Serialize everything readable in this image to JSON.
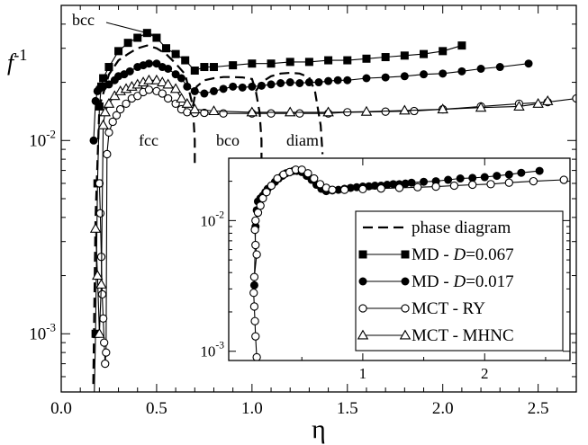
{
  "chart_data": [
    {
      "type": "line",
      "xlabel": "η",
      "ylabel": "f",
      "ylabel_sup": "-1",
      "xscale": "linear",
      "yscale": "log",
      "xlim": [
        0,
        2.7
      ],
      "ylim": [
        0.0005,
        0.05
      ],
      "x_ticks": [
        0,
        0.5,
        1,
        1.5,
        2,
        2.5
      ],
      "x_tick_labels": [
        "0.0",
        "0.5",
        "1.0",
        "1.5",
        "2.0",
        "2.5"
      ],
      "y_ticks": [
        0.001,
        0.01
      ],
      "y_tick_labels": [
        {
          "base": "10",
          "exp": "-3"
        },
        {
          "base": "10",
          "exp": "-2"
        }
      ],
      "grid": false,
      "annotations": [
        "bcc",
        "fcc",
        "bco",
        "diam"
      ],
      "series": [
        {
          "name": "phase diagram",
          "style": "dashed",
          "segments": [
            {
              "x": [
                0.168,
                0.18,
                0.2,
                0.25,
                0.3,
                0.35,
                0.4,
                0.45,
                0.5,
                0.55,
                0.6,
                0.65,
                0.69,
                0.7,
                0.7
              ],
              "y": [
                0.00055,
                0.004,
                0.015,
                0.022,
                0.026,
                0.028,
                0.03,
                0.031,
                0.03,
                0.028,
                0.025,
                0.022,
                0.015,
                0.01,
                0.0072
              ]
            },
            {
              "x": [
                0.69,
                0.71,
                0.75,
                0.8,
                0.85,
                0.9,
                0.95,
                1.0,
                1.02,
                1.04,
                1.05,
                1.05
              ],
              "y": [
                0.015,
                0.019,
                0.0205,
                0.021,
                0.0213,
                0.0213,
                0.0212,
                0.0208,
                0.018,
                0.014,
                0.01,
                0.0074
              ]
            },
            {
              "x": [
                1.02,
                1.05,
                1.1,
                1.15,
                1.2,
                1.25,
                1.3,
                1.33,
                1.36,
                1.37
              ],
              "y": [
                0.018,
                0.02,
                0.0215,
                0.0222,
                0.0224,
                0.0222,
                0.0212,
                0.018,
                0.012,
                0.0085
              ]
            }
          ]
        },
        {
          "name": "MD - D=0.067",
          "marker": "square-filled",
          "x": [
            0.17,
            0.18,
            0.19,
            0.2,
            0.21,
            0.22,
            0.25,
            0.3,
            0.35,
            0.4,
            0.45,
            0.5,
            0.55,
            0.6,
            0.65,
            0.7,
            0.75,
            0.8,
            0.9,
            1.0,
            1.1,
            1.2,
            1.3,
            1.4,
            1.5,
            1.6,
            1.7,
            1.8,
            1.9,
            2.0,
            2.1
          ],
          "y": [
            0.00034,
            0.001,
            0.006,
            0.015,
            0.019,
            0.021,
            0.024,
            0.029,
            0.032,
            0.034,
            0.036,
            0.034,
            0.03,
            0.028,
            0.026,
            0.023,
            0.024,
            0.024,
            0.0245,
            0.025,
            0.025,
            0.0255,
            0.0255,
            0.026,
            0.026,
            0.0265,
            0.027,
            0.0275,
            0.028,
            0.029,
            0.031
          ]
        },
        {
          "name": "MD - D=0.017",
          "marker": "circle-filled",
          "x": [
            0.17,
            0.18,
            0.19,
            0.2,
            0.22,
            0.25,
            0.28,
            0.3,
            0.33,
            0.36,
            0.4,
            0.43,
            0.46,
            0.5,
            0.53,
            0.56,
            0.6,
            0.63,
            0.66,
            0.7,
            0.75,
            0.8,
            0.85,
            0.9,
            0.95,
            1.0,
            1.05,
            1.1,
            1.15,
            1.2,
            1.25,
            1.3,
            1.35,
            1.4,
            1.45,
            1.5,
            1.6,
            1.7,
            1.8,
            1.9,
            2.0,
            2.1,
            2.2,
            2.3,
            2.45
          ],
          "y": [
            0.01,
            0.016,
            0.018,
            0.0185,
            0.019,
            0.0195,
            0.0205,
            0.0215,
            0.022,
            0.0228,
            0.024,
            0.0245,
            0.025,
            0.025,
            0.024,
            0.0235,
            0.022,
            0.021,
            0.019,
            0.018,
            0.0175,
            0.018,
            0.0185,
            0.019,
            0.0188,
            0.019,
            0.0192,
            0.0195,
            0.0198,
            0.02,
            0.0198,
            0.02,
            0.02,
            0.0203,
            0.0205,
            0.0205,
            0.021,
            0.0212,
            0.0215,
            0.022,
            0.0222,
            0.0228,
            0.0235,
            0.024,
            0.025
          ]
        },
        {
          "name": "MCT - RY",
          "marker": "circle-open",
          "x": [
            0.2,
            0.205,
            0.21,
            0.215,
            0.22,
            0.225,
            0.23,
            0.235,
            0.24,
            0.25,
            0.27,
            0.29,
            0.31,
            0.34,
            0.37,
            0.4,
            0.43,
            0.46,
            0.5,
            0.53,
            0.56,
            0.6,
            0.63,
            0.66,
            0.7,
            0.75,
            0.85,
            1.0,
            1.1,
            1.25,
            1.4,
            1.5,
            1.7,
            1.85,
            2.0,
            2.2,
            2.4,
            2.55,
            2.7
          ],
          "y": [
            0.006,
            0.0042,
            0.0025,
            0.0016,
            0.0012,
            0.0009,
            0.0007,
            0.0008,
            0.0085,
            0.011,
            0.0125,
            0.0135,
            0.0145,
            0.0155,
            0.0165,
            0.017,
            0.0178,
            0.0183,
            0.018,
            0.0175,
            0.0165,
            0.0155,
            0.0145,
            0.014,
            0.0139,
            0.0139,
            0.0138,
            0.0138,
            0.0138,
            0.0138,
            0.0138,
            0.014,
            0.0141,
            0.0142,
            0.0145,
            0.015,
            0.0155,
            0.0158,
            0.0165
          ]
        },
        {
          "name": "MCT - MHNC",
          "marker": "triangle-open",
          "x": [
            0.18,
            0.19,
            0.2,
            0.21,
            0.22,
            0.23,
            0.25,
            0.28,
            0.31,
            0.34,
            0.37,
            0.4,
            0.43,
            0.46,
            0.5,
            0.53,
            0.56,
            0.6,
            0.63,
            0.66,
            0.7,
            0.8,
            1.0,
            1.2,
            1.4,
            1.6,
            1.8,
            2.0,
            2.2,
            2.4,
            2.5,
            2.55
          ],
          "y": [
            0.0035,
            0.002,
            0.001,
            0.0018,
            0.012,
            0.014,
            0.0155,
            0.017,
            0.018,
            0.0185,
            0.019,
            0.0195,
            0.02,
            0.0205,
            0.0205,
            0.02,
            0.0195,
            0.0185,
            0.0165,
            0.0155,
            0.0145,
            0.0142,
            0.014,
            0.014,
            0.014,
            0.0141,
            0.0143,
            0.0145,
            0.0148,
            0.015,
            0.0155,
            0.016
          ]
        }
      ]
    },
    {
      "type": "line",
      "inset": true,
      "xscale": "linear",
      "yscale": "log",
      "xlim": [
        -0.1,
        2.7
      ],
      "ylim": [
        0.00085,
        0.03
      ],
      "x_ticks": [
        1,
        2
      ],
      "x_tick_labels": [
        "1",
        "2"
      ],
      "y_ticks": [
        0.001,
        0.01
      ],
      "y_tick_labels": [
        {
          "base": "10",
          "exp": "-3"
        },
        {
          "base": "10",
          "exp": "-2"
        }
      ],
      "legend_position": "inside, lower-right",
      "legend": [
        {
          "label": "phase diagram",
          "style": "dashed"
        },
        {
          "label_prefix": "MD - ",
          "label_var": "D",
          "label_suffix": "=0.067",
          "marker": "square-filled"
        },
        {
          "label_prefix": "MD - ",
          "label_var": "D",
          "label_suffix": "=0.017",
          "marker": "circle-filled"
        },
        {
          "label": "MCT - RY",
          "marker": "circle-open"
        },
        {
          "label": "MCT - MHNC",
          "marker": "triangle-open"
        }
      ],
      "series": [
        {
          "name": "MD - D=0.017",
          "marker": "circle-filled",
          "x": [
            0.11,
            0.12,
            0.13,
            0.14,
            0.16,
            0.18,
            0.2,
            0.22,
            0.25,
            0.28,
            0.31,
            0.34,
            0.37,
            0.4,
            0.43,
            0.46,
            0.5,
            0.54,
            0.58,
            0.62,
            0.66,
            0.7,
            0.75,
            0.8,
            0.85,
            0.9,
            0.95,
            1.0,
            1.05,
            1.1,
            1.15,
            1.2,
            1.25,
            1.3,
            1.35,
            1.4,
            1.5,
            1.6,
            1.7,
            1.8,
            1.9,
            2.0,
            2.1,
            2.2,
            2.3,
            2.45
          ],
          "y": [
            0.0032,
            0.009,
            0.012,
            0.014,
            0.0148,
            0.0155,
            0.0165,
            0.0175,
            0.0185,
            0.0198,
            0.021,
            0.022,
            0.023,
            0.0235,
            0.024,
            0.024,
            0.0235,
            0.022,
            0.0205,
            0.0188,
            0.0175,
            0.0168,
            0.017,
            0.0172,
            0.0175,
            0.0178,
            0.018,
            0.0182,
            0.0183,
            0.0185,
            0.0185,
            0.0188,
            0.019,
            0.019,
            0.0192,
            0.0195,
            0.0198,
            0.02,
            0.0205,
            0.021,
            0.0212,
            0.0215,
            0.022,
            0.0225,
            0.0232,
            0.024
          ]
        },
        {
          "name": "MCT - RY",
          "marker": "circle-open",
          "x": [
            0.13,
            0.12,
            0.115,
            0.11,
            0.105,
            0.11,
            0.13,
            0.12,
            0.115,
            0.12,
            0.14,
            0.16,
            0.18,
            0.21,
            0.25,
            0.3,
            0.35,
            0.4,
            0.45,
            0.5,
            0.55,
            0.6,
            0.65,
            0.7,
            0.75,
            0.85,
            1.0,
            1.15,
            1.3,
            1.45,
            1.6,
            1.75,
            1.9,
            2.05,
            2.2,
            2.4,
            2.65
          ],
          "y": [
            0.0009,
            0.0013,
            0.0017,
            0.0022,
            0.0028,
            0.0037,
            0.0055,
            0.0065,
            0.0085,
            0.01,
            0.0115,
            0.013,
            0.0148,
            0.0165,
            0.0185,
            0.021,
            0.0225,
            0.0235,
            0.0245,
            0.0245,
            0.023,
            0.021,
            0.019,
            0.0178,
            0.0172,
            0.0172,
            0.0174,
            0.0176,
            0.0178,
            0.018,
            0.0182,
            0.0185,
            0.0188,
            0.019,
            0.0195,
            0.02,
            0.0205
          ]
        }
      ]
    }
  ]
}
